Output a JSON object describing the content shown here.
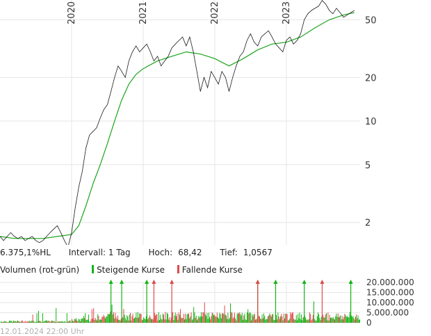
{
  "info": {
    "symbol": "6.375,1%HL",
    "interval": "Intervall: 1 Tag",
    "high_label": "Hoch:",
    "high_value": "68,42",
    "low_label": "Tief:",
    "low_value": "1,0567"
  },
  "legend": {
    "volume_label": "Volumen (rot-grün)",
    "rising_label": "Steigende Kurse",
    "falling_label": "Fallende Kurse"
  },
  "footer": {
    "timestamp": "12.01.2024 22:00 Uhr"
  },
  "colors": {
    "price": "#1a1a1a",
    "moving_average": "#1aa51a",
    "rising": "#12b512",
    "falling": "#e04848",
    "grid": "#e6e6e6",
    "footer_text": "#b0b0b0"
  },
  "chart_data": [
    {
      "type": "line",
      "scale": "log",
      "grid": true,
      "x_ticks": [
        "2020",
        "2021",
        "2022",
        "2023"
      ],
      "y_ticks": [
        2,
        5,
        10,
        20,
        50
      ],
      "ylim": [
        1.05,
        68.42
      ],
      "series": [
        {
          "values_approx": [
            [
              2019.0,
              1.6
            ],
            [
              2019.05,
              1.5
            ],
            [
              2019.1,
              1.6
            ],
            [
              2019.15,
              1.7
            ],
            [
              2019.2,
              1.6
            ],
            [
              2019.25,
              1.55
            ],
            [
              2019.3,
              1.6
            ],
            [
              2019.35,
              1.5
            ],
            [
              2019.4,
              1.55
            ],
            [
              2019.45,
              1.6
            ],
            [
              2019.5,
              1.5
            ],
            [
              2019.55,
              1.45
            ],
            [
              2019.6,
              1.5
            ],
            [
              2019.65,
              1.6
            ],
            [
              2019.7,
              1.7
            ],
            [
              2019.75,
              1.8
            ],
            [
              2019.8,
              1.9
            ],
            [
              2019.85,
              1.7
            ],
            [
              2019.9,
              1.5
            ],
            [
              2019.95,
              1.35
            ],
            [
              2020.0,
              1.7
            ],
            [
              2020.05,
              2.5
            ],
            [
              2020.1,
              3.5
            ],
            [
              2020.15,
              4.5
            ],
            [
              2020.2,
              6.5
            ],
            [
              2020.25,
              8.0
            ],
            [
              2020.3,
              8.5
            ],
            [
              2020.35,
              9.0
            ],
            [
              2020.4,
              10.5
            ],
            [
              2020.45,
              12.0
            ],
            [
              2020.5,
              13.0
            ],
            [
              2020.55,
              16.0
            ],
            [
              2020.6,
              20.0
            ],
            [
              2020.65,
              24.0
            ],
            [
              2020.7,
              22.0
            ],
            [
              2020.75,
              20.0
            ],
            [
              2020.8,
              26.0
            ],
            [
              2020.85,
              30.0
            ],
            [
              2020.9,
              33.0
            ],
            [
              2020.95,
              30.0
            ],
            [
              2021.0,
              32.0
            ],
            [
              2021.05,
              34.0
            ],
            [
              2021.1,
              30.0
            ],
            [
              2021.15,
              26.0
            ],
            [
              2021.2,
              28.0
            ],
            [
              2021.25,
              24.0
            ],
            [
              2021.3,
              26.0
            ],
            [
              2021.35,
              28.0
            ],
            [
              2021.4,
              32.0
            ],
            [
              2021.45,
              34.0
            ],
            [
              2021.5,
              36.0
            ],
            [
              2021.55,
              38.0
            ],
            [
              2021.6,
              33.0
            ],
            [
              2021.65,
              38.0
            ],
            [
              2021.7,
              30.0
            ],
            [
              2021.75,
              22.0
            ],
            [
              2021.8,
              16.0
            ],
            [
              2021.85,
              20.0
            ],
            [
              2021.9,
              17.0
            ],
            [
              2021.95,
              22.0
            ],
            [
              2022.0,
              20.0
            ],
            [
              2022.05,
              18.0
            ],
            [
              2022.1,
              22.0
            ],
            [
              2022.15,
              20.0
            ],
            [
              2022.2,
              16.0
            ],
            [
              2022.25,
              20.0
            ],
            [
              2022.3,
              24.0
            ],
            [
              2022.35,
              28.0
            ],
            [
              2022.4,
              30.0
            ],
            [
              2022.45,
              36.0
            ],
            [
              2022.5,
              40.0
            ],
            [
              2022.55,
              35.0
            ],
            [
              2022.6,
              33.0
            ],
            [
              2022.65,
              38.0
            ],
            [
              2022.7,
              40.0
            ],
            [
              2022.75,
              42.0
            ],
            [
              2022.8,
              38.0
            ],
            [
              2022.85,
              34.0
            ],
            [
              2022.9,
              32.0
            ],
            [
              2022.95,
              30.0
            ],
            [
              2023.0,
              36.0
            ],
            [
              2023.05,
              38.0
            ],
            [
              2023.1,
              34.0
            ],
            [
              2023.15,
              36.0
            ],
            [
              2023.2,
              40.0
            ],
            [
              2023.25,
              50.0
            ],
            [
              2023.3,
              55.0
            ],
            [
              2023.35,
              58.0
            ],
            [
              2023.4,
              60.0
            ],
            [
              2023.45,
              62.0
            ],
            [
              2023.5,
              68.0
            ],
            [
              2023.55,
              64.0
            ],
            [
              2023.6,
              58.0
            ],
            [
              2023.65,
              55.0
            ],
            [
              2023.7,
              60.0
            ],
            [
              2023.75,
              56.0
            ],
            [
              2023.8,
              52.0
            ],
            [
              2023.85,
              54.0
            ],
            [
              2023.9,
              56.0
            ],
            [
              2023.95,
              58.0
            ]
          ]
        },
        {
          "values_approx": [
            [
              2019.0,
              1.6
            ],
            [
              2019.2,
              1.55
            ],
            [
              2019.4,
              1.55
            ],
            [
              2019.6,
              1.55
            ],
            [
              2019.8,
              1.6
            ],
            [
              2020.0,
              1.65
            ],
            [
              2020.1,
              1.9
            ],
            [
              2020.2,
              2.6
            ],
            [
              2020.3,
              3.7
            ],
            [
              2020.4,
              5.0
            ],
            [
              2020.5,
              7.0
            ],
            [
              2020.6,
              10.0
            ],
            [
              2020.7,
              14.0
            ],
            [
              2020.8,
              18.0
            ],
            [
              2020.9,
              21.0
            ],
            [
              2021.0,
              23.0
            ],
            [
              2021.2,
              26.0
            ],
            [
              2021.4,
              28.0
            ],
            [
              2021.6,
              30.0
            ],
            [
              2021.8,
              29.0
            ],
            [
              2022.0,
              27.0
            ],
            [
              2022.2,
              24.0
            ],
            [
              2022.4,
              27.0
            ],
            [
              2022.6,
              31.0
            ],
            [
              2022.8,
              34.0
            ],
            [
              2023.0,
              35.0
            ],
            [
              2023.2,
              38.0
            ],
            [
              2023.4,
              44.0
            ],
            [
              2023.6,
              50.0
            ],
            [
              2023.8,
              54.0
            ],
            [
              2023.95,
              56.0
            ]
          ]
        }
      ]
    },
    {
      "type": "bar",
      "title": "Volumen (rot-grün)",
      "y_ticks": [
        0,
        5000000,
        10000000,
        15000000,
        20000000
      ],
      "y_tick_labels": [
        "0",
        "5.000.000",
        "10.000.000",
        "15.000.000",
        "20.000.000"
      ],
      "ylim": [
        0,
        20000000
      ],
      "series": [
        {
          "name": "Steigende Kurse",
          "spikes_approx": [
            [
              2020.55,
              20000000
            ],
            [
              2020.7,
              20000000
            ],
            [
              2021.05,
              20000000
            ],
            [
              2022.6,
              20000000
            ],
            [
              2022.85,
              20000000
            ],
            [
              2023.25,
              20000000
            ],
            [
              2023.9,
              20000000
            ]
          ]
        },
        {
          "name": "Fallende Kurse",
          "spikes_approx": [
            [
              2021.15,
              20000000
            ],
            [
              2021.4,
              20000000
            ],
            [
              2022.6,
              20000000
            ],
            [
              2023.5,
              20000000
            ]
          ]
        }
      ]
    }
  ]
}
